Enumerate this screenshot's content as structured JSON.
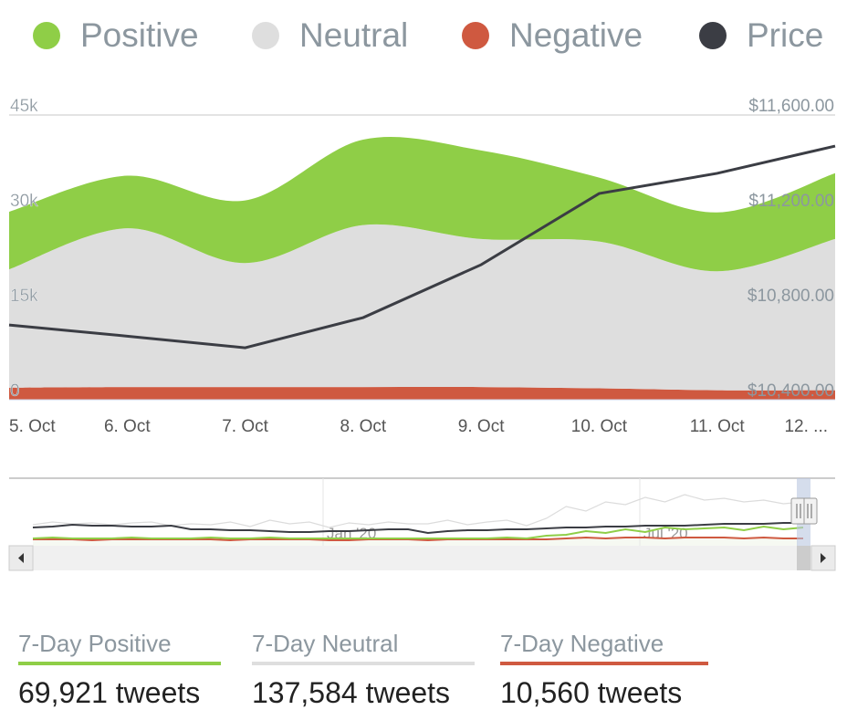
{
  "chart_data": {
    "type": "area",
    "stacked": true,
    "categories": [
      "5. Oct",
      "6. Oct",
      "7. Oct",
      "8. Oct",
      "9. Oct",
      "10. Oct",
      "11. Oct",
      "12. ..."
    ],
    "series": [
      {
        "name": "Positive",
        "color": "#8fce47",
        "axis": "left",
        "values": [
          9100,
          8300,
          9900,
          13500,
          14000,
          10100,
          9300,
          10400
        ]
      },
      {
        "name": "Neutral",
        "color": "#dedede",
        "axis": "left",
        "values": [
          18700,
          25100,
          19600,
          25600,
          23400,
          23200,
          18800,
          23900
        ]
      },
      {
        "name": "Negative",
        "color": "#cf5940",
        "axis": "left",
        "values": [
          1900,
          2000,
          2000,
          2000,
          2000,
          1800,
          1500,
          1500
        ]
      },
      {
        "name": "Price",
        "color": "#3b3d44",
        "axis": "right",
        "type": "line",
        "values": [
          10715,
          10668,
          10619,
          10746,
          10969,
          11269,
          11354,
          11469
        ]
      }
    ],
    "left_axis": {
      "ticks": [
        "0",
        "15k",
        "30k",
        "45k"
      ],
      "tick_values": [
        0,
        15000,
        30000,
        45000
      ],
      "ylim": [
        0,
        45000
      ]
    },
    "right_axis": {
      "ticks": [
        "$10,400.00",
        "$10,800.00",
        "$11,200.00",
        "$11,600.00"
      ],
      "tick_values": [
        10400,
        10800,
        11200,
        11600
      ],
      "ylim": [
        10400,
        11600
      ]
    },
    "legend_position": "top",
    "navigator": {
      "labels": [
        "Jan '20",
        "Jul '20"
      ],
      "price": [
        58,
        57,
        55,
        56,
        56,
        57,
        57,
        56,
        60,
        60,
        61,
        61,
        62,
        63,
        63,
        62,
        62,
        61,
        60,
        60,
        64,
        62,
        61,
        61,
        60,
        60,
        59,
        58,
        58,
        57,
        57,
        56,
        56,
        56,
        55,
        54,
        54,
        54,
        53,
        53
      ],
      "neutral": [
        55,
        52,
        54,
        53,
        55,
        53,
        52,
        56,
        54,
        55,
        52,
        57,
        50,
        54,
        52,
        58,
        53,
        55,
        52,
        54,
        54,
        50,
        55,
        52,
        50,
        56,
        48,
        35,
        40,
        30,
        33,
        25,
        30,
        22,
        28,
        26,
        30,
        28,
        32,
        30
      ],
      "positive": [
        70,
        69,
        70,
        70,
        70,
        69,
        70,
        70,
        70,
        69,
        70,
        70,
        69,
        70,
        70,
        70,
        70,
        70,
        70,
        70,
        70,
        70,
        70,
        70,
        69,
        70,
        67,
        66,
        62,
        64,
        60,
        63,
        58,
        60,
        59,
        58,
        61,
        57,
        60,
        58
      ],
      "negative": [
        71,
        71,
        71,
        72,
        71,
        71,
        71,
        71,
        71,
        71,
        72,
        71,
        71,
        71,
        71,
        72,
        72,
        71,
        71,
        71,
        72,
        71,
        71,
        71,
        71,
        71,
        71,
        70,
        69,
        70,
        69,
        69,
        70,
        69,
        69,
        69,
        70,
        69,
        70,
        70
      ]
    }
  },
  "legend": [
    {
      "label": "Positive",
      "color": "#8fce47"
    },
    {
      "label": "Neutral",
      "color": "#dedede"
    },
    {
      "label": "Negative",
      "color": "#cf5940"
    },
    {
      "label": "Price",
      "color": "#3b3d44"
    }
  ],
  "stats": [
    {
      "label": "7-Day Positive",
      "value": "69,921 tweets",
      "color": "#8fce47"
    },
    {
      "label": "7-Day Neutral",
      "value": "137,584 tweets",
      "color": "#dedede"
    },
    {
      "label": "7-Day Negative",
      "value": "10,560 tweets",
      "color": "#cf5940"
    }
  ]
}
